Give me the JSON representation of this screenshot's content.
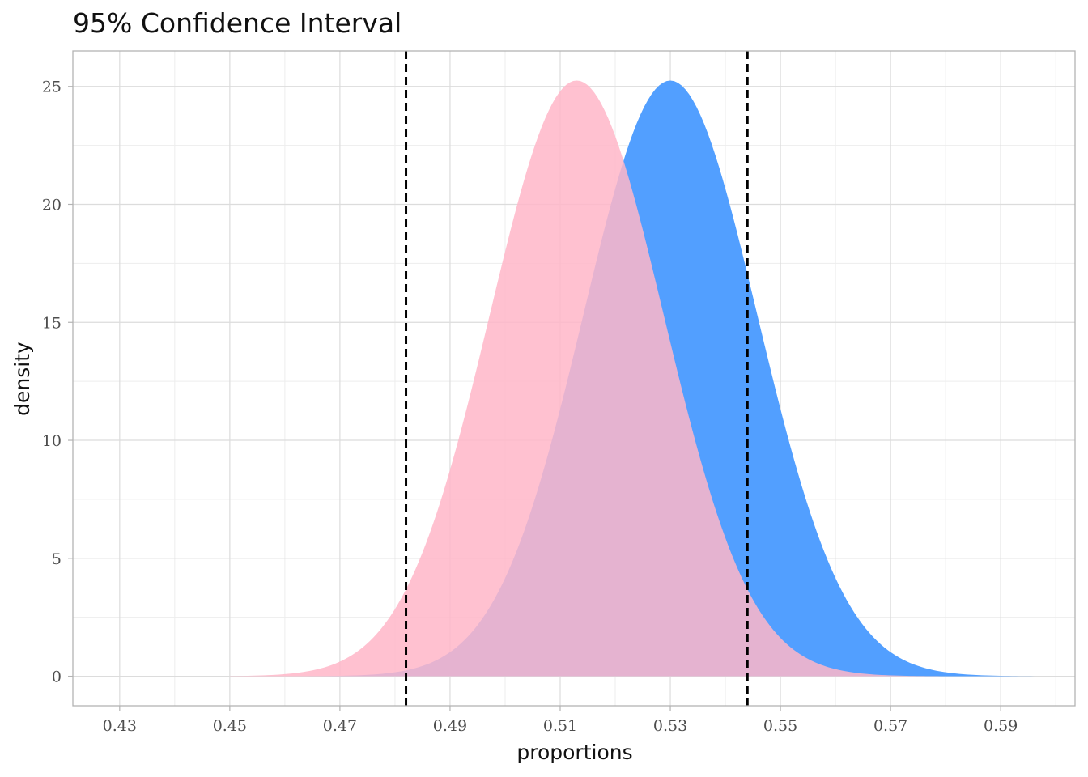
{
  "chart_data": {
    "type": "area",
    "title": "95% Confidence Interval",
    "xlabel": "proportions",
    "ylabel": "density",
    "xlim": [
      0.4215,
      0.6035
    ],
    "ylim": [
      -1.25,
      26.5
    ],
    "x_ticks": [
      0.43,
      0.45,
      0.47,
      0.49,
      0.51,
      0.53,
      0.55,
      0.57,
      0.59
    ],
    "x_tick_labels": [
      "0.43",
      "0.45",
      "0.47",
      "0.49",
      "0.51",
      "0.53",
      "0.55",
      "0.57",
      "0.59"
    ],
    "y_ticks": [
      0,
      5,
      10,
      15,
      20,
      25
    ],
    "y_tick_labels": [
      "0",
      "5",
      "10",
      "15",
      "20",
      "25"
    ],
    "grid": true,
    "legend": "none",
    "series": [
      {
        "color": "#529FFF",
        "opacity": 1,
        "distribution": "normal",
        "mean": 0.53,
        "sd": 0.0158,
        "x_range": [
          0.455,
          0.605
        ]
      },
      {
        "color": "#FFB6C8",
        "opacity": 0.85,
        "distribution": "normal",
        "mean": 0.513,
        "sd": 0.0158,
        "x_range": [
          0.45,
          0.59
        ]
      }
    ],
    "reference_lines": [
      {
        "x": 0.482,
        "style": "dashed",
        "color": "#000000"
      },
      {
        "x": 0.544,
        "style": "dashed",
        "color": "#000000"
      }
    ]
  }
}
